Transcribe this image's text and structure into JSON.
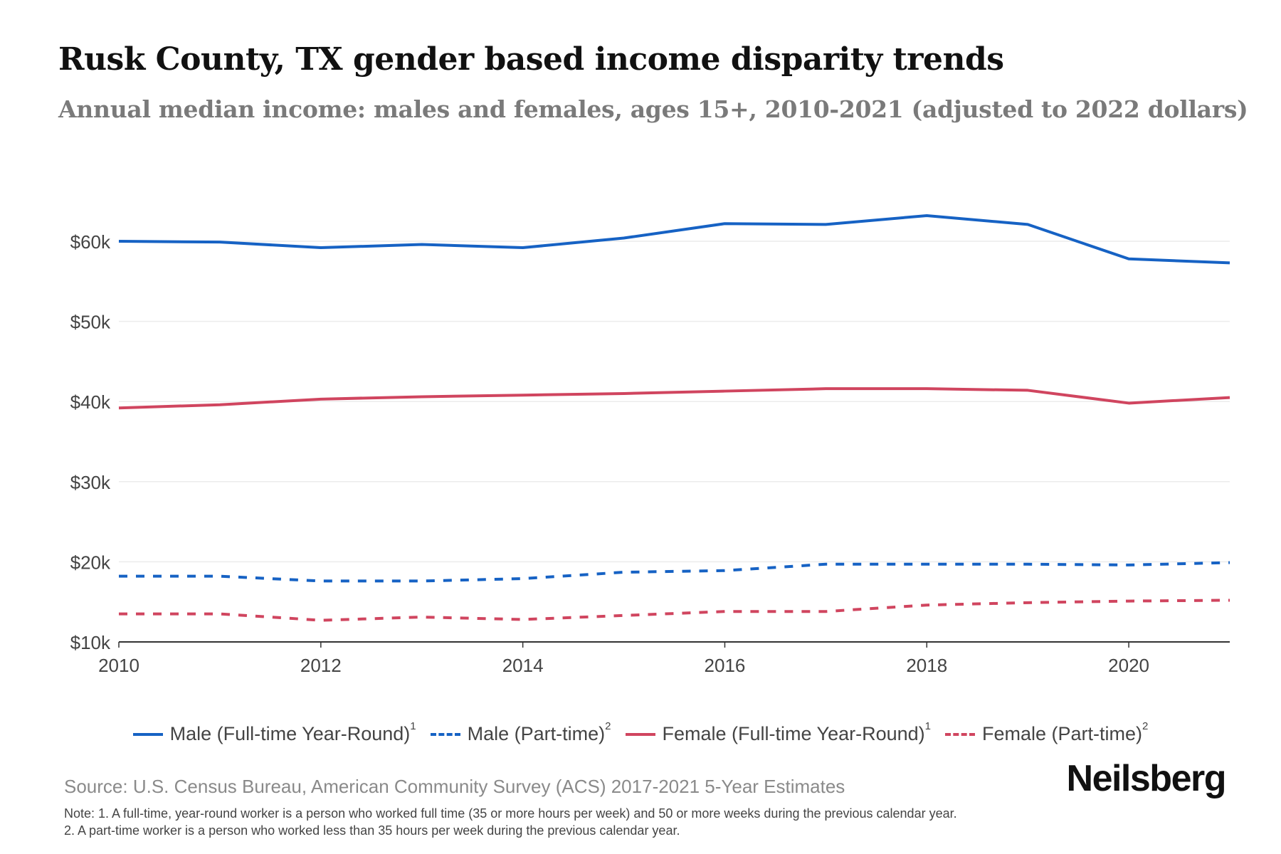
{
  "header": {
    "title": "Rusk County, TX gender based income disparity trends",
    "subtitle": "Annual median income: males and females, ages 15+, 2010-2021 (adjusted to 2022 dollars)"
  },
  "chart_data": {
    "type": "line",
    "title": "Rusk County, TX gender based income disparity trends",
    "subtitle": "Annual median income: males and females, ages 15+, 2010-2021 (adjusted to 2022 dollars)",
    "xlabel": "",
    "ylabel": "",
    "x": [
      2010,
      2011,
      2012,
      2013,
      2014,
      2015,
      2016,
      2017,
      2018,
      2019,
      2020,
      2021
    ],
    "xticks": [
      2010,
      2012,
      2014,
      2016,
      2018,
      2020
    ],
    "xtick_labels": [
      "2010",
      "2012",
      "2014",
      "2016",
      "2018",
      "2020"
    ],
    "xlim": [
      2010,
      2021
    ],
    "ylim": [
      10000,
      60000
    ],
    "yticks": [
      10000,
      20000,
      30000,
      40000,
      50000,
      60000
    ],
    "ytick_labels": [
      "$10k",
      "$20k",
      "$30k",
      "$40k",
      "$50k",
      "$60k"
    ],
    "grid": true,
    "legend_position": "bottom",
    "series": [
      {
        "name": "Male (Full-time Year-Round)",
        "footnote": "1",
        "color": "#1662c4",
        "style": "solid",
        "values": [
          60000,
          59900,
          59200,
          59600,
          59200,
          60400,
          62200,
          62100,
          63200,
          62100,
          57800,
          57300
        ]
      },
      {
        "name": "Male (Part-time)",
        "footnote": "2",
        "color": "#1662c4",
        "style": "dashed",
        "values": [
          18200,
          18200,
          17600,
          17600,
          17900,
          18700,
          18900,
          19700,
          19700,
          19700,
          19600,
          19900
        ]
      },
      {
        "name": "Female (Full-time Year-Round)",
        "footnote": "1",
        "color": "#d0455f",
        "style": "solid",
        "values": [
          39200,
          39600,
          40300,
          40600,
          40800,
          41000,
          41300,
          41600,
          41600,
          41400,
          39800,
          40500
        ]
      },
      {
        "name": "Female (Part-time)",
        "footnote": "2",
        "color": "#d0455f",
        "style": "dashed",
        "values": [
          13500,
          13500,
          12700,
          13100,
          12800,
          13300,
          13800,
          13800,
          14600,
          14900,
          15100,
          15200
        ]
      }
    ]
  },
  "legend": {
    "items": [
      {
        "label": "Male (Full-time Year-Round)",
        "sup": "1"
      },
      {
        "label": "Male (Part-time)",
        "sup": "2"
      },
      {
        "label": "Female (Full-time Year-Round)",
        "sup": "1"
      },
      {
        "label": "Female (Part-time)",
        "sup": "2"
      }
    ]
  },
  "footer": {
    "source": "Source: U.S. Census Bureau, American Community Survey (ACS) 2017-2021 5-Year Estimates",
    "brand": "Neilsberg",
    "note1": "Note: 1. A full-time, year-round worker is a person who worked full time (35 or more hours per week) and 50 or more weeks during the previous calendar year.",
    "note2": "2. A part-time worker is a person who worked less than 35 hours per week during the previous calendar year."
  },
  "colors": {
    "male": "#1662c4",
    "female": "#d0455f",
    "grid": "#ececec",
    "axis": "#333333"
  }
}
